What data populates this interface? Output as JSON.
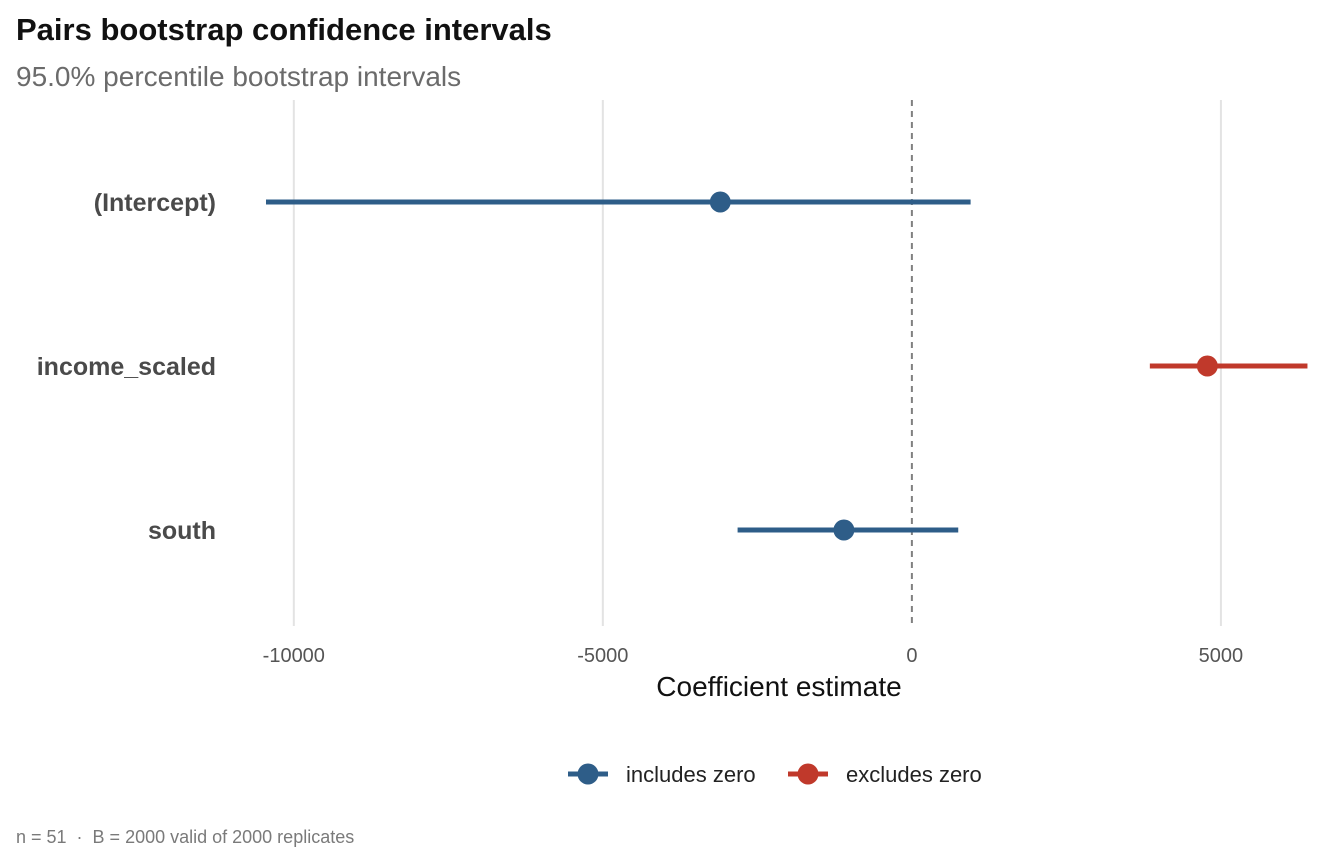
{
  "chart_data": {
    "type": "forest",
    "title": "Pairs bootstrap confidence intervals",
    "subtitle": "95.0% percentile bootstrap intervals",
    "xlabel": "Coefficient estimate",
    "ylabel": "",
    "xlim": [
      -11000,
      6700
    ],
    "xticks": [
      -10000,
      -5000,
      0,
      5000
    ],
    "xtick_labels": [
      "-10000",
      "-5000",
      "0",
      "5000"
    ],
    "reference_line": 0,
    "grid": "vertical major",
    "legend_position": "bottom",
    "terms": [
      {
        "name": "(Intercept)",
        "estimate": -3100,
        "lower": -10450,
        "upper": 950,
        "group": "includes zero"
      },
      {
        "name": "income_scaled",
        "estimate": 4780,
        "lower": 3850,
        "upper": 6400,
        "group": "excludes zero"
      },
      {
        "name": "south",
        "estimate": -1100,
        "lower": -2820,
        "upper": 750,
        "group": "includes zero"
      }
    ],
    "legend": [
      {
        "label": "includes zero",
        "color": "#2e5d88"
      },
      {
        "label": "excludes zero",
        "color": "#c0392b"
      }
    ],
    "caption": "n = 51  ·  B = 2000 valid of 2000 replicates"
  }
}
